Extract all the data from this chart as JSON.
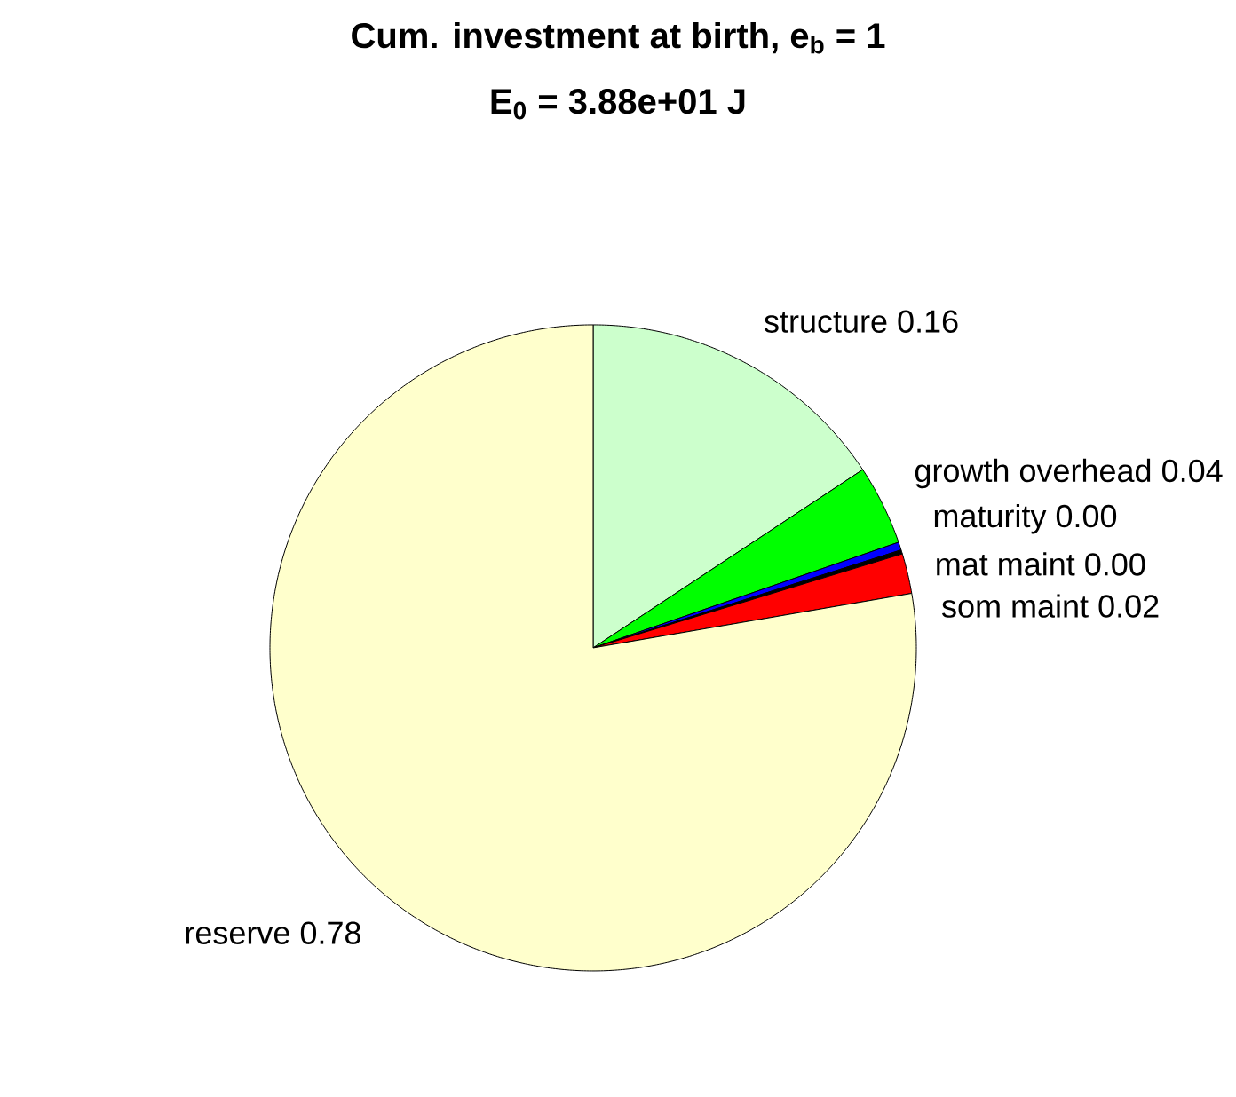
{
  "chart_data": {
    "type": "pie",
    "title": "Cum. investment at birth, e$_{b}$ = 1",
    "subtitle": "E$_{0}$ = 3.88e+01 J",
    "categories": [
      "structure",
      "growth overhead",
      "maturity",
      "mat maint",
      "som maint",
      "reserve"
    ],
    "values": [
      0.157,
      0.04,
      0.004,
      0.002,
      0.02,
      0.777
    ],
    "value_labels": [
      "0.16",
      "0.04",
      "0.00",
      "0.00",
      "0.02",
      "0.78"
    ],
    "colors": [
      "#ccffcc",
      "#00ff00",
      "#0000ff",
      "#000000",
      "#ff0000",
      "#ffffcc"
    ]
  }
}
